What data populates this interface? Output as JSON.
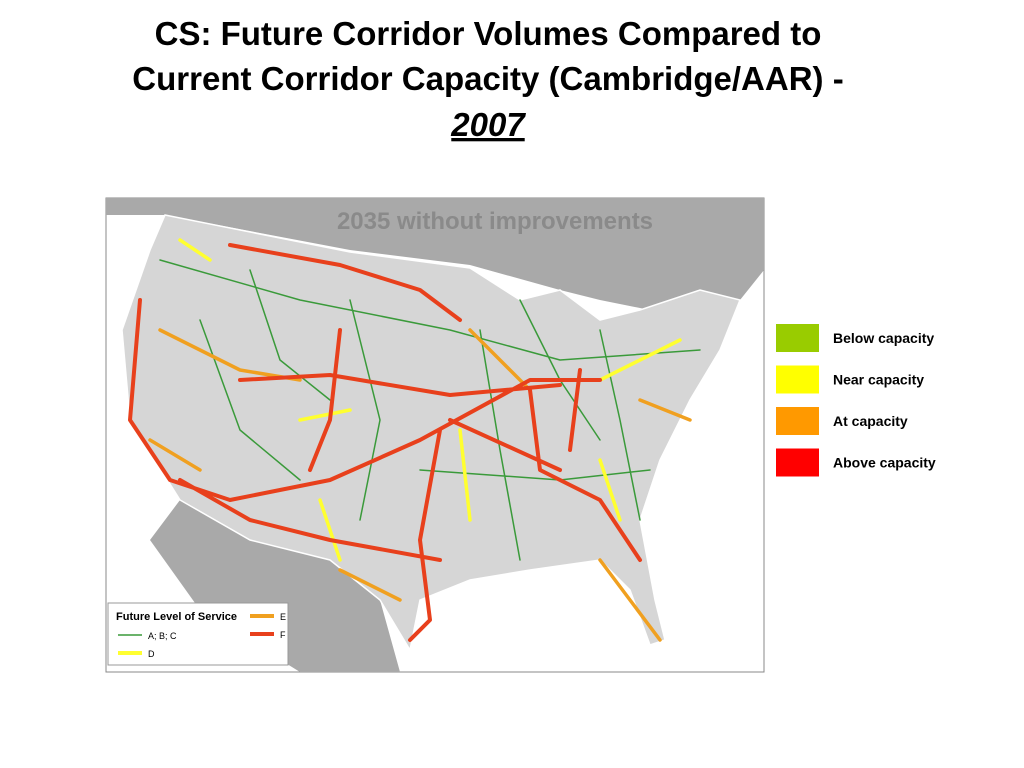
{
  "header": {
    "title_lines": [
      "CS: Future Corridor Volumes Compared to",
      "Current Corridor Capacity (Cambridge/AAR) -"
    ],
    "year": "2007"
  },
  "map": {
    "caption": "2035 without improvements",
    "inset_legend": {
      "title": "Future Level of Service",
      "items": [
        {
          "label": "A; B; C",
          "color": "#3a9a3a"
        },
        {
          "label": "D",
          "color": "#ffff30"
        },
        {
          "label": "E",
          "color": "#f0a020"
        },
        {
          "label": "F",
          "color": "#e8401c"
        }
      ]
    }
  },
  "legend": {
    "items": [
      {
        "label": "Below capacity",
        "color": "#99cc00"
      },
      {
        "label": "Near capacity",
        "color": "#ffff00"
      },
      {
        "label": "At capacity",
        "color": "#ff9900"
      },
      {
        "label": "Above capacity",
        "color": "#ff0000"
      }
    ]
  }
}
